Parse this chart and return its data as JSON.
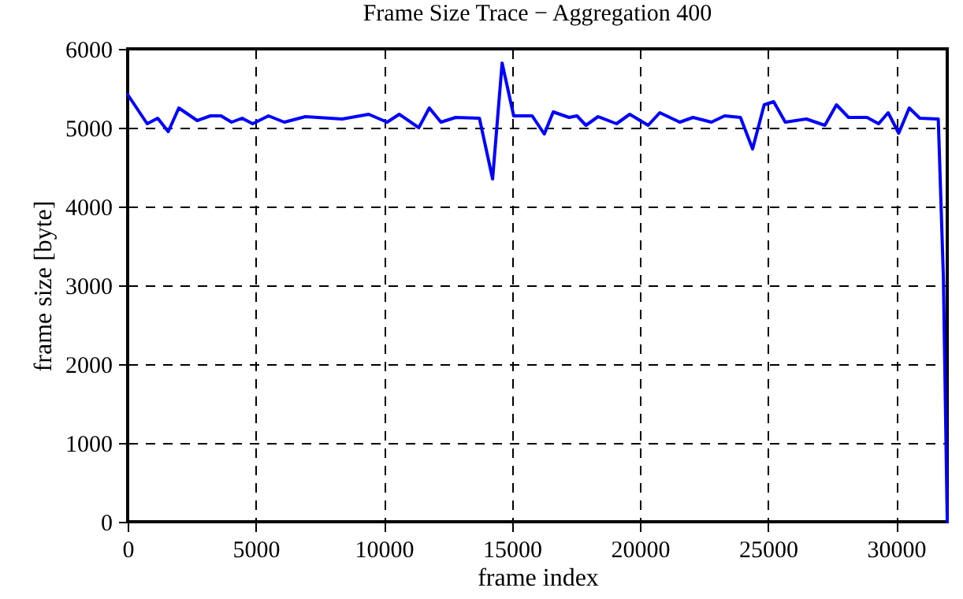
{
  "chart_data": {
    "type": "line",
    "title": "Frame Size Trace − Aggregation 400",
    "xlabel": "frame index",
    "ylabel": "frame size [byte]",
    "x": [
      0,
      762,
      1173,
      1585,
      1997,
      2718,
      3233,
      3645,
      4057,
      4468,
      4880,
      5498,
      6115,
      6939,
      8380,
      9410,
      10130,
      10604,
      11366,
      11778,
      12231,
      12808,
      13734,
      14249,
      14620,
      15073,
      15794,
      16267,
      16616,
      17234,
      17543,
      17893,
      18366,
      19087,
      19602,
      20323,
      20776,
      21558,
      22073,
      22793,
      23308,
      23926,
      24400,
      24853,
      25223,
      25677,
      26500,
      27221,
      27674,
      28148,
      28869,
      29322,
      29693,
      30105,
      30517,
      30929,
      31650,
      31850,
      32000
    ],
    "series": [
      {
        "color": "#0000ff",
        "values": [
          5420,
          5050,
          5120,
          4950,
          5250,
          5090,
          5150,
          5150,
          5070,
          5120,
          5050,
          5150,
          5070,
          5140,
          5110,
          5170,
          5070,
          5170,
          5000,
          5250,
          5070,
          5130,
          5120,
          4350,
          5820,
          5150,
          5150,
          4920,
          5200,
          5130,
          5150,
          5030,
          5140,
          5050,
          5170,
          5030,
          5190,
          5070,
          5130,
          5070,
          5150,
          5130,
          4730,
          5290,
          5330,
          5070,
          5110,
          5030,
          5290,
          5130,
          5130,
          5050,
          5190,
          4930,
          5250,
          5120,
          5110,
          3100,
          0
        ]
      }
    ],
    "xlim": [
      0,
      32000
    ],
    "ylim": [
      0,
      6000
    ],
    "xticks": [
      0,
      5000,
      10000,
      15000,
      20000,
      25000,
      30000
    ],
    "yticks": [
      0,
      1000,
      2000,
      3000,
      4000,
      5000,
      6000
    ],
    "grid": true,
    "marker": "none",
    "line_style": "solid"
  }
}
